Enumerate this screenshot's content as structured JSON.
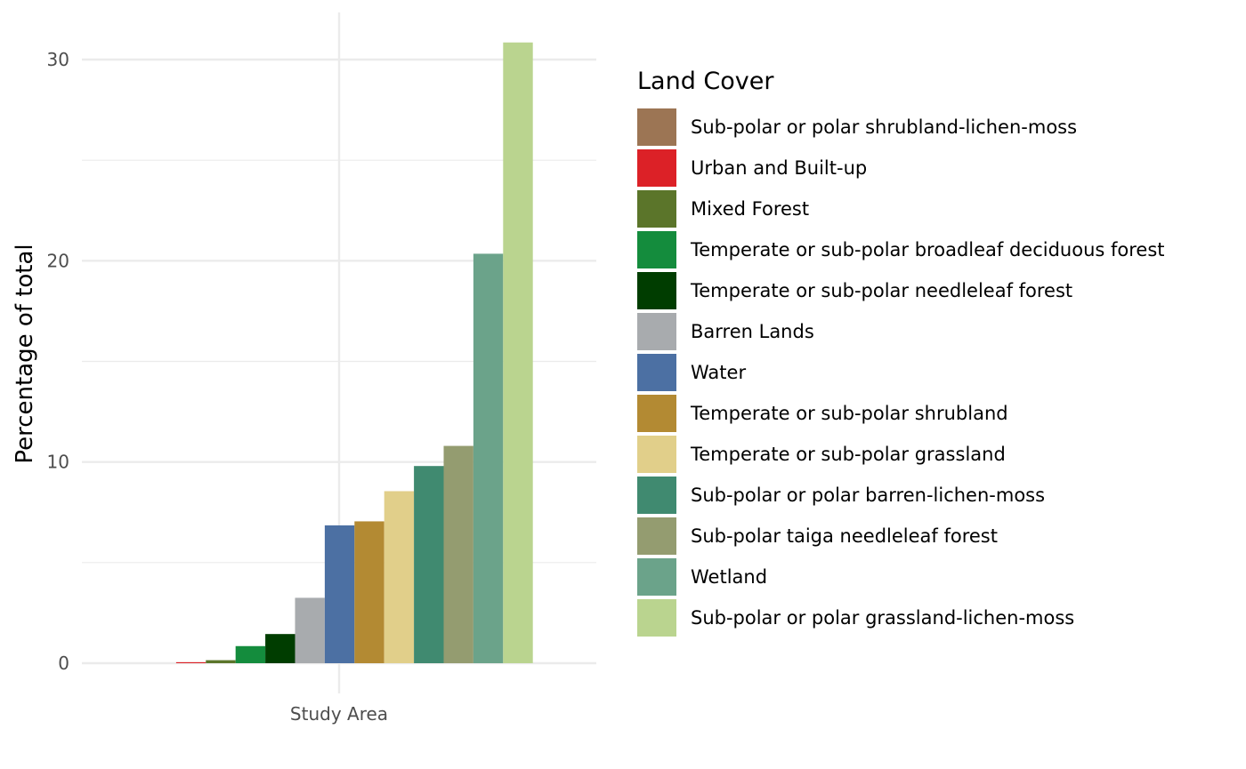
{
  "chart_data": {
    "type": "bar",
    "x_category": "Study Area",
    "ylabel": "Percentage of total",
    "ylim": [
      0,
      31
    ],
    "y_ticks": [
      0,
      10,
      20,
      30
    ],
    "grid": true,
    "legend": {
      "title": "Land Cover",
      "position": "right"
    },
    "series": [
      {
        "name": "Sub-polar or polar shrubland-lichen-moss",
        "value": 0.0,
        "color": "#9C7554"
      },
      {
        "name": "Urban and Built-up",
        "value": 0.05,
        "color": "#DC2127"
      },
      {
        "name": "Mixed Forest",
        "value": 0.15,
        "color": "#5B752A"
      },
      {
        "name": "Temperate or sub-polar broadleaf deciduous forest",
        "value": 0.85,
        "color": "#148C3D"
      },
      {
        "name": "Temperate or sub-polar needleleaf forest",
        "value": 1.45,
        "color": "#003D00"
      },
      {
        "name": "Barren Lands",
        "value": 3.25,
        "color": "#A8ABAE"
      },
      {
        "name": "Water",
        "value": 6.85,
        "color": "#4C70A3"
      },
      {
        "name": "Temperate or sub-polar shrubland",
        "value": 7.05,
        "color": "#B38A33"
      },
      {
        "name": "Temperate or sub-polar grassland",
        "value": 8.55,
        "color": "#E1CF8A"
      },
      {
        "name": "Sub-polar or polar barren-lichen-moss",
        "value": 9.8,
        "color": "#408A70"
      },
      {
        "name": "Sub-polar taiga needleleaf forest",
        "value": 10.8,
        "color": "#949C70"
      },
      {
        "name": "Wetland",
        "value": 20.35,
        "color": "#6BA38A"
      },
      {
        "name": "Sub-polar or polar grassland-lichen-moss",
        "value": 30.85,
        "color": "#BAD48F"
      }
    ]
  }
}
